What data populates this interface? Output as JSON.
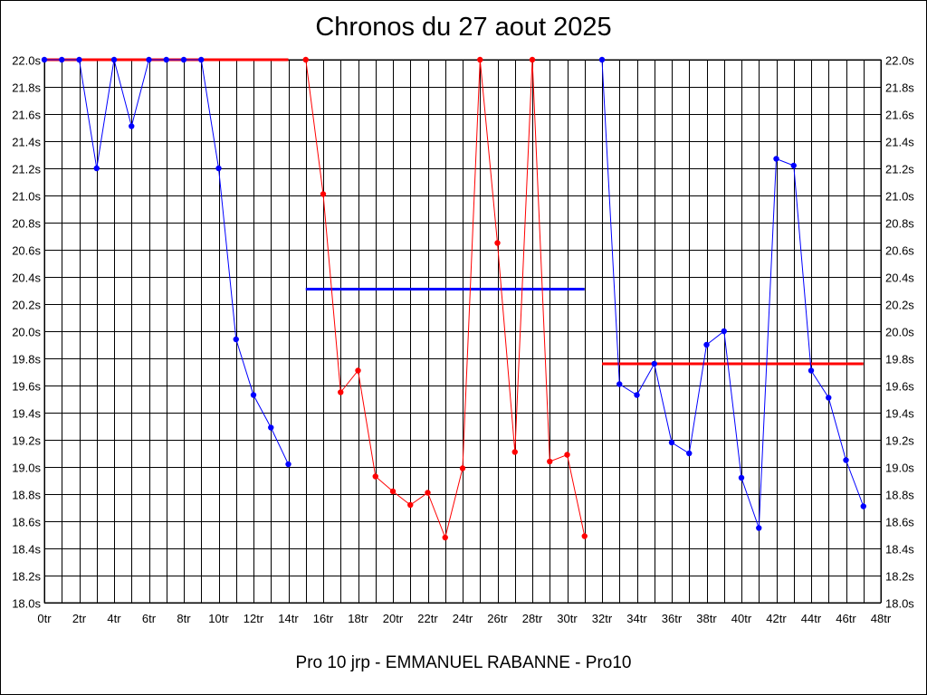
{
  "chart_data": {
    "type": "line",
    "title": "Chronos du 27 aout 2025",
    "caption": "Pro 10 jrp - EMMANUEL RABANNE - Pro10",
    "ylim": [
      18.0,
      22.0
    ],
    "xlim": [
      0,
      48
    ],
    "grid": true,
    "x_ticks": [
      "0tr",
      "2tr",
      "4tr",
      "6tr",
      "8tr",
      "10tr",
      "12tr",
      "14tr",
      "16tr",
      "18tr",
      "20tr",
      "22tr",
      "24tr",
      "26tr",
      "28tr",
      "30tr",
      "32tr",
      "34tr",
      "36tr",
      "38tr",
      "40tr",
      "42tr",
      "44tr",
      "46tr",
      "48tr"
    ],
    "y_ticks": [
      "18.0s",
      "18.2s",
      "18.4s",
      "18.6s",
      "18.8s",
      "19.0s",
      "19.2s",
      "19.4s",
      "19.6s",
      "19.8s",
      "20.0s",
      "20.2s",
      "20.4s",
      "20.6s",
      "20.8s",
      "21.0s",
      "21.2s",
      "21.4s",
      "21.6s",
      "21.8s",
      "22.0s"
    ],
    "series": [
      {
        "color": "#0000ff",
        "x": [
          0,
          1,
          2,
          3,
          4,
          5,
          6,
          7,
          8,
          9,
          10,
          11,
          12,
          13,
          14
        ],
        "values": [
          22.0,
          22.0,
          22.0,
          21.2,
          22.0,
          21.51,
          22.0,
          22.0,
          22.0,
          22.0,
          21.2,
          19.94,
          19.53,
          19.29,
          19.02
        ]
      },
      {
        "color": "#ff0000",
        "x": [
          15,
          16,
          17,
          18,
          19,
          20,
          21,
          22,
          23,
          24,
          25,
          26,
          27,
          28,
          29,
          30,
          31
        ],
        "values": [
          22.0,
          21.01,
          19.55,
          19.71,
          18.93,
          18.82,
          18.72,
          18.81,
          18.48,
          18.99,
          22.0,
          20.65,
          19.11,
          22.0,
          19.04,
          19.09,
          18.49
        ]
      },
      {
        "color": "#0000ff",
        "x": [
          32,
          33,
          34,
          35,
          36,
          37,
          38,
          39,
          40,
          41,
          42,
          43,
          44,
          45,
          46,
          47
        ],
        "values": [
          22.0,
          19.61,
          19.53,
          19.76,
          19.18,
          19.1,
          19.9,
          20.0,
          18.92,
          18.55,
          21.27,
          21.22,
          19.71,
          19.51,
          19.05,
          18.71
        ]
      }
    ],
    "averages": [
      {
        "color": "#ff0000",
        "x": [
          0,
          14
        ],
        "value": 22.0
      },
      {
        "color": "#0000ff",
        "x": [
          15,
          31
        ],
        "value": 20.31
      },
      {
        "color": "#ff0000",
        "x": [
          32,
          47
        ],
        "value": 19.76
      }
    ]
  }
}
